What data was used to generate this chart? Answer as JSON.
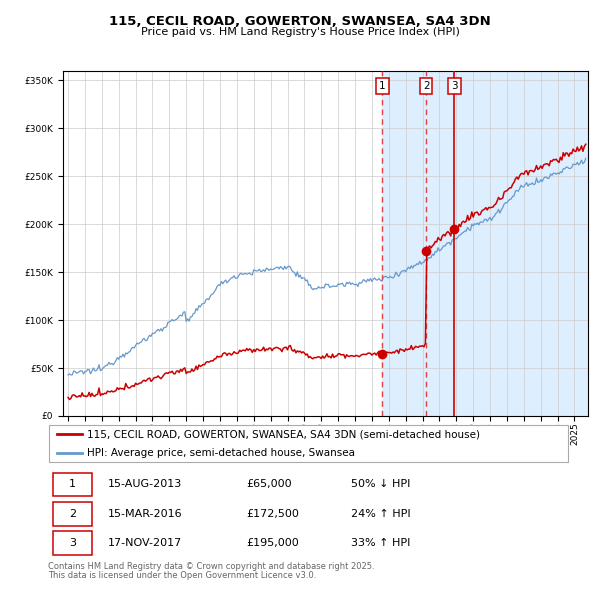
{
  "title_line1": "115, CECIL ROAD, GOWERTON, SWANSEA, SA4 3DN",
  "title_line2": "Price paid vs. HM Land Registry's House Price Index (HPI)",
  "legend_label_red": "115, CECIL ROAD, GOWERTON, SWANSEA, SA4 3DN (semi-detached house)",
  "legend_label_blue": "HPI: Average price, semi-detached house, Swansea",
  "footer_line1": "Contains HM Land Registry data © Crown copyright and database right 2025.",
  "footer_line2": "This data is licensed under the Open Government Licence v3.0.",
  "transactions": [
    {
      "num": "1",
      "date": "15-AUG-2013",
      "price": "£65,000",
      "hpi_rel": "50% ↓ HPI"
    },
    {
      "num": "2",
      "date": "15-MAR-2016",
      "price": "£172,500",
      "hpi_rel": "24% ↑ HPI"
    },
    {
      "num": "3",
      "date": "17-NOV-2017",
      "price": "£195,000",
      "hpi_rel": "33% ↑ HPI"
    }
  ],
  "transaction_dates_num": [
    2013.62,
    2016.21,
    2017.88
  ],
  "transaction_prices": [
    65000,
    172500,
    195000
  ],
  "red_line_color": "#cc0000",
  "blue_line_color": "#6699cc",
  "bg_highlight_color": "#ddeeff",
  "vline_dash_color": "#dd4444",
  "vline_solid_color": "#cc0000",
  "marker_color": "#cc0000",
  "grid_color": "#cccccc",
  "legend_border_color": "#aaaaaa",
  "table_border_color": "#cc0000",
  "footer_color": "#666666",
  "ylim": [
    0,
    360000
  ],
  "yticks": [
    0,
    50000,
    100000,
    150000,
    200000,
    250000,
    300000,
    350000
  ],
  "xlim_start": 1994.7,
  "xlim_end": 2025.8,
  "title_fontsize": 9.5,
  "subtitle_fontsize": 8,
  "tick_fontsize": 6.5,
  "legend_fontsize": 7.5,
  "table_fontsize": 8,
  "footer_fontsize": 6
}
